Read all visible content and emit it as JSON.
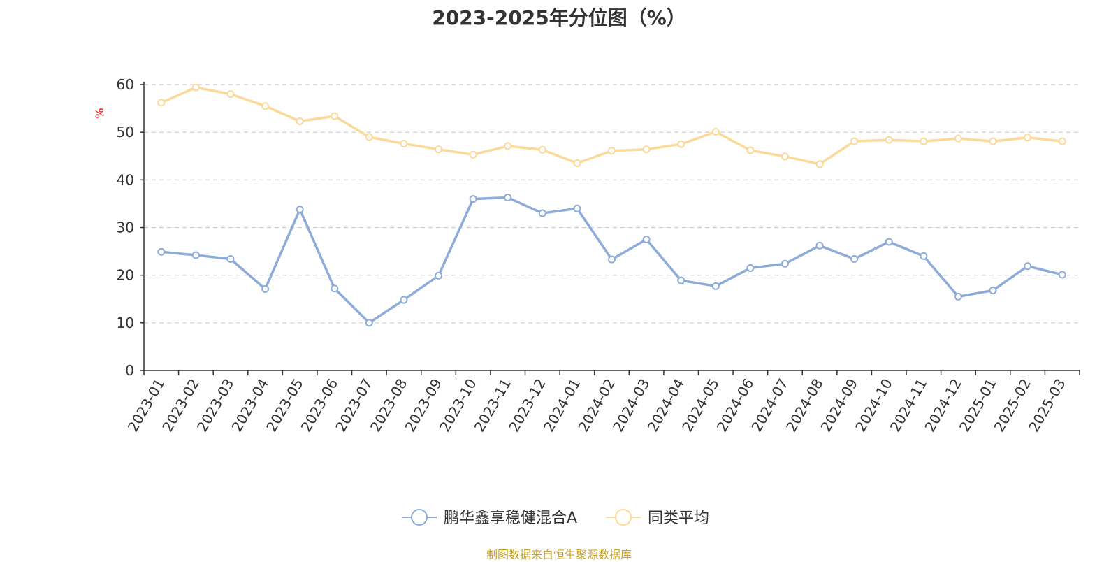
{
  "chart_data": {
    "type": "line",
    "title": "2023-2025年分位图（%）",
    "xlabel": "",
    "ylabel": "%",
    "ylim": [
      0,
      60
    ],
    "yticks": [
      0,
      10,
      20,
      30,
      40,
      50,
      60
    ],
    "grid": true,
    "legend_position": "bottom-center",
    "categories": [
      "2023-01",
      "2023-02",
      "2023-03",
      "2023-04",
      "2023-05",
      "2023-06",
      "2023-07",
      "2023-08",
      "2023-09",
      "2023-10",
      "2023-11",
      "2023-12",
      "2024-01",
      "2024-02",
      "2024-03",
      "2024-04",
      "2024-05",
      "2024-06",
      "2024-07",
      "2024-08",
      "2024-09",
      "2024-10",
      "2024-11",
      "2024-12",
      "2025-01",
      "2025-02",
      "2025-03"
    ],
    "series": [
      {
        "name": "鹏华鑫享稳健混合A",
        "color": "#8eacd8",
        "values": [
          24.9,
          24.2,
          23.4,
          17.1,
          33.8,
          17.2,
          10.0,
          14.8,
          19.9,
          36.0,
          36.3,
          33.0,
          34.0,
          23.3,
          27.5,
          18.9,
          17.7,
          21.5,
          22.4,
          26.2,
          23.4,
          27.0,
          24.0,
          15.5,
          16.8,
          21.9,
          20.1
        ]
      },
      {
        "name": "同类平均",
        "color": "#fbd99a",
        "values": [
          56.2,
          59.4,
          58.0,
          55.5,
          52.3,
          53.4,
          49.0,
          47.6,
          46.4,
          45.3,
          47.1,
          46.3,
          43.5,
          46.1,
          46.4,
          47.5,
          50.1,
          46.2,
          44.9,
          43.3,
          48.1,
          48.4,
          48.1,
          48.7,
          48.1,
          48.9,
          48.1
        ]
      }
    ],
    "source_note": "制图数据来自恒生聚源数据库",
    "axis_color": "#333333",
    "grid_color": "#cccccc",
    "ylabel_color": "#ff0000"
  }
}
